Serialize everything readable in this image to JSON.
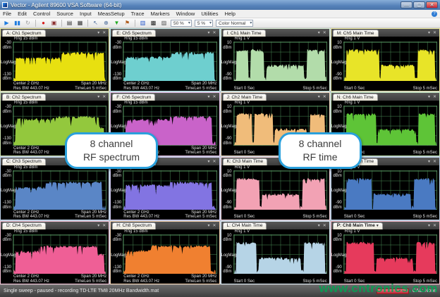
{
  "window": {
    "title": "Vector - Agilent 89600 VSA Software (64-bit)"
  },
  "menu": {
    "items": [
      "File",
      "Edit",
      "Control",
      "Source",
      "Input",
      "MeasSetup",
      "Trace",
      "Markers",
      "Window",
      "Utilities",
      "Help"
    ]
  },
  "toolbar": {
    "zoom_value": "50 %",
    "step_value": "5 %",
    "color_value": "Color Normal"
  },
  "callouts": [
    {
      "line1": "8 channel",
      "line2": "RF spectrum"
    },
    {
      "line1": "8 channel",
      "line2": "RF time"
    }
  ],
  "status_bar": {
    "left": "Single sweep - paused - recording TD-LTE TM8 20MHz Bandwidth.mat",
    "right": "CAL: None"
  },
  "watermark": "www.cntronics.com",
  "spectrum_labels": {
    "rng": "Rng 15 dBm",
    "y_top": "-30",
    "y_unit": "dBm",
    "y_mid": "LogMag",
    "y_bot": "-130",
    "bl1": "Center 2 GHz",
    "bl2": "Res BW 443.07 Hz",
    "br1": "Span 20 MHz",
    "br2": "TimeLen 5 mSec"
  },
  "time_labels": {
    "rng": "Rng 1 V",
    "y_top": "10",
    "y_unit": "dBm",
    "y_mid": "LogMag",
    "y_bot": "-90",
    "bl1": "Start 0 Sec",
    "bl2": "",
    "br1": "Stop 5 mSec",
    "br2": ""
  },
  "panels": [
    {
      "id": "A",
      "title": "A: Ch1 Spectrum",
      "type": "spectrum",
      "color": "#e8e010",
      "border": "#f0eda0",
      "seed": 11,
      "profile": [
        [
          0.03,
          0.52,
          0.6
        ],
        [
          0.52,
          0.97,
          0.74
        ]
      ]
    },
    {
      "id": "E",
      "title": "E: Ch5 Spectrum",
      "type": "spectrum",
      "color": "#6ecfcf",
      "border": "#c4ecec",
      "seed": 22,
      "profile": [
        [
          0.03,
          0.52,
          0.62
        ],
        [
          0.52,
          0.97,
          0.74
        ]
      ]
    },
    {
      "id": "I",
      "title": "I: Ch1 Main Time",
      "type": "time",
      "color": "#b2dcaa",
      "border": "#daf0d6",
      "seed": 33,
      "profile": [
        [
          0.03,
          0.16,
          0.82
        ],
        [
          0.18,
          0.33,
          0.82
        ],
        [
          0.35,
          0.75,
          0.4
        ],
        [
          0.78,
          0.97,
          0.82
        ]
      ]
    },
    {
      "id": "M",
      "title": "M: Ch5 Main Time",
      "type": "time",
      "color": "#e8e428",
      "border": "#f0eda0",
      "seed": 44,
      "profile": [
        [
          0.03,
          0.38,
          0.82
        ],
        [
          0.4,
          0.76,
          0.4
        ],
        [
          0.79,
          0.97,
          0.82
        ]
      ]
    },
    {
      "id": "B",
      "title": "B: Ch2 Spectrum",
      "type": "spectrum",
      "color": "#93c83d",
      "border": "#d6ecb8",
      "seed": 55,
      "profile": [
        [
          0.03,
          0.45,
          0.68
        ],
        [
          0.45,
          0.92,
          0.74
        ],
        [
          0.92,
          0.97,
          0.45
        ]
      ]
    },
    {
      "id": "F",
      "title": "F: Ch6 Spectrum",
      "type": "spectrum",
      "color": "#c963c9",
      "border": "#ecc8ec",
      "seed": 66,
      "profile": [
        [
          0.03,
          0.5,
          0.66
        ],
        [
          0.5,
          0.95,
          0.74
        ]
      ]
    },
    {
      "id": "J",
      "title": "J: Ch2 Main Time",
      "type": "time",
      "color": "#f0bc7a",
      "border": "#f8e2c6",
      "seed": 77,
      "profile": [
        [
          0.03,
          0.2,
          0.82
        ],
        [
          0.22,
          0.42,
          0.82
        ],
        [
          0.44,
          0.78,
          0.4
        ],
        [
          0.81,
          0.97,
          0.82
        ]
      ]
    },
    {
      "id": "N",
      "title": "N: Ch6 Main Time",
      "type": "time",
      "color": "#5ec437",
      "border": "#caecba",
      "seed": 88,
      "profile": [
        [
          0.03,
          0.35,
          0.82
        ],
        [
          0.37,
          0.77,
          0.4
        ],
        [
          0.8,
          0.97,
          0.82
        ]
      ]
    },
    {
      "id": "C",
      "title": "C: Ch3 Spectrum",
      "type": "spectrum",
      "color": "#5a86c6",
      "border": "#c2d6ee",
      "seed": 99,
      "profile": [
        [
          0.03,
          0.35,
          0.58
        ],
        [
          0.35,
          0.95,
          0.72
        ]
      ]
    },
    {
      "id": "G",
      "title": "G: Ch7 Spectrum",
      "type": "spectrum",
      "color": "#8274e2",
      "border": "#d2caf2",
      "seed": 111,
      "profile": [
        [
          0.03,
          0.5,
          0.64
        ],
        [
          0.5,
          0.95,
          0.72
        ]
      ]
    },
    {
      "id": "K",
      "title": "K: Ch3 Main Time",
      "type": "time",
      "color": "#f2a2b4",
      "border": "#fad8e0",
      "seed": 122,
      "profile": [
        [
          0.03,
          0.28,
          0.82
        ],
        [
          0.3,
          0.7,
          0.4
        ],
        [
          0.73,
          0.97,
          0.82
        ]
      ]
    },
    {
      "id": "O",
      "title": "O: Ch7 Main Time",
      "type": "time",
      "color": "#4a7ac2",
      "border": "#bed2ea",
      "seed": 133,
      "profile": [
        [
          0.03,
          0.3,
          0.82
        ],
        [
          0.32,
          0.72,
          0.4
        ],
        [
          0.75,
          0.97,
          0.82
        ]
      ]
    },
    {
      "id": "D",
      "title": "D: Ch4 Spectrum",
      "type": "spectrum",
      "color": "#ef5f96",
      "border": "#f8c6da",
      "seed": 144,
      "profile": [
        [
          0.03,
          0.28,
          0.58
        ],
        [
          0.28,
          0.9,
          0.72
        ],
        [
          0.9,
          0.97,
          0.5
        ]
      ]
    },
    {
      "id": "H",
      "title": "H: Ch8 Spectrum",
      "type": "spectrum",
      "color": "#f08030",
      "border": "#f8d4b2",
      "seed": 155,
      "profile": [
        [
          0.03,
          0.3,
          0.6
        ],
        [
          0.3,
          0.93,
          0.73
        ]
      ]
    },
    {
      "id": "L",
      "title": "L: Ch4 Main Time",
      "type": "time",
      "color": "#b6d4e6",
      "border": "#deecf6",
      "seed": 166,
      "profile": [
        [
          0.03,
          0.25,
          0.82
        ],
        [
          0.27,
          0.72,
          0.4
        ],
        [
          0.75,
          0.97,
          0.82
        ]
      ]
    },
    {
      "id": "P",
      "title": "P: Ch8 Main Time",
      "type": "time",
      "selected": true,
      "color": "#e63a5c",
      "border": "#f4bac8",
      "seed": 177,
      "profile": [
        [
          0.03,
          0.33,
          0.82
        ],
        [
          0.35,
          0.74,
          0.4
        ],
        [
          0.77,
          0.97,
          0.82
        ]
      ]
    }
  ]
}
